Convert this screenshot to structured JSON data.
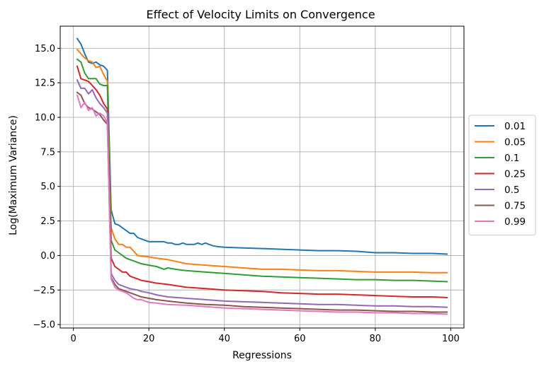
{
  "chart_data": {
    "type": "line",
    "title": "Effect of Velocity Limits on Convergence",
    "xlabel": "Regressions",
    "ylabel": "Log(Maximum Variance)",
    "xlim": [
      -3.5,
      103.5
    ],
    "ylim": [
      -5.25,
      16.6
    ],
    "xticks": [
      0,
      20,
      40,
      60,
      80,
      100
    ],
    "yticks": [
      -5.0,
      -2.5,
      0.0,
      2.5,
      5.0,
      7.5,
      10.0,
      12.5,
      15.0
    ],
    "ytick_labels": [
      "−5.0",
      "−2.5",
      "0.0",
      "2.5",
      "5.0",
      "7.5",
      "10.0",
      "12.5",
      "15.0"
    ],
    "grid": true,
    "legend_position": "outside-right",
    "series": [
      {
        "name": "0.01",
        "color": "#1f77b4",
        "x": [
          1,
          2,
          3,
          4,
          5,
          6,
          7,
          8,
          9,
          10,
          11,
          12,
          13,
          14,
          15,
          16,
          17,
          18,
          19,
          20,
          22,
          24,
          25,
          26,
          27,
          28,
          29,
          30,
          31,
          32,
          33,
          34,
          35,
          36,
          37,
          38,
          40,
          45,
          50,
          55,
          60,
          65,
          70,
          75,
          80,
          85,
          90,
          95,
          99
        ],
        "y": [
          15.7,
          15.3,
          14.6,
          14.0,
          13.9,
          14.0,
          13.8,
          13.7,
          13.4,
          3.3,
          2.3,
          2.2,
          2.0,
          1.8,
          1.6,
          1.6,
          1.3,
          1.2,
          1.1,
          1.0,
          1.0,
          1.0,
          0.9,
          0.9,
          0.8,
          0.8,
          0.9,
          0.8,
          0.8,
          0.8,
          0.9,
          0.8,
          0.9,
          0.8,
          0.7,
          0.65,
          0.6,
          0.55,
          0.5,
          0.45,
          0.4,
          0.35,
          0.35,
          0.3,
          0.2,
          0.2,
          0.15,
          0.15,
          0.1
        ]
      },
      {
        "name": "0.05",
        "color": "#ff7f0e",
        "x": [
          1,
          2,
          3,
          4,
          5,
          6,
          7,
          8,
          9,
          10,
          11,
          12,
          13,
          14,
          15,
          16,
          17,
          18,
          20,
          22,
          25,
          30,
          35,
          40,
          45,
          50,
          55,
          60,
          65,
          70,
          75,
          80,
          85,
          90,
          95,
          99
        ],
        "y": [
          14.9,
          14.6,
          14.3,
          14.1,
          14.0,
          13.6,
          13.7,
          13.1,
          12.6,
          2.0,
          1.2,
          0.8,
          0.8,
          0.6,
          0.6,
          0.3,
          0.0,
          -0.05,
          -0.1,
          -0.2,
          -0.3,
          -0.6,
          -0.7,
          -0.8,
          -0.9,
          -1.0,
          -1.0,
          -1.05,
          -1.1,
          -1.1,
          -1.15,
          -1.2,
          -1.2,
          -1.2,
          -1.25,
          -1.25
        ]
      },
      {
        "name": "0.1",
        "color": "#2ca02c",
        "x": [
          1,
          2,
          3,
          4,
          5,
          6,
          7,
          8,
          9,
          10,
          11,
          12,
          13,
          14,
          15,
          16,
          17,
          18,
          20,
          22,
          24,
          25,
          27,
          30,
          35,
          40,
          45,
          50,
          55,
          60,
          65,
          70,
          75,
          80,
          85,
          90,
          95,
          99
        ],
        "y": [
          14.2,
          14.0,
          13.2,
          12.8,
          12.8,
          12.8,
          12.4,
          12.3,
          12.3,
          1.1,
          0.4,
          0.2,
          0.0,
          -0.2,
          -0.3,
          -0.4,
          -0.5,
          -0.6,
          -0.7,
          -0.8,
          -1.0,
          -0.9,
          -1.0,
          -1.1,
          -1.2,
          -1.3,
          -1.4,
          -1.5,
          -1.55,
          -1.6,
          -1.65,
          -1.7,
          -1.75,
          -1.75,
          -1.8,
          -1.8,
          -1.85,
          -1.9
        ]
      },
      {
        "name": "0.25",
        "color": "#d62728",
        "x": [
          1,
          2,
          3,
          4,
          5,
          6,
          7,
          8,
          9,
          10,
          11,
          12,
          13,
          14,
          15,
          16,
          17,
          18,
          20,
          22,
          25,
          30,
          35,
          40,
          45,
          50,
          55,
          60,
          65,
          70,
          75,
          80,
          85,
          90,
          95,
          99
        ],
        "y": [
          13.7,
          12.8,
          12.7,
          12.6,
          12.3,
          12.0,
          11.6,
          11.0,
          10.6,
          -0.2,
          -0.8,
          -1.0,
          -1.2,
          -1.2,
          -1.5,
          -1.6,
          -1.7,
          -1.8,
          -1.9,
          -2.0,
          -2.1,
          -2.3,
          -2.4,
          -2.5,
          -2.55,
          -2.6,
          -2.7,
          -2.75,
          -2.8,
          -2.8,
          -2.85,
          -2.9,
          -2.95,
          -3.0,
          -3.0,
          -3.05
        ]
      },
      {
        "name": "0.5",
        "color": "#9467bd",
        "x": [
          1,
          2,
          3,
          4,
          5,
          6,
          7,
          8,
          9,
          10,
          11,
          12,
          13,
          14,
          15,
          16,
          17,
          18,
          20,
          22,
          25,
          30,
          35,
          40,
          45,
          50,
          55,
          60,
          65,
          70,
          75,
          80,
          85,
          90,
          95,
          99
        ],
        "y": [
          12.7,
          12.1,
          12.1,
          11.7,
          12.0,
          11.4,
          11.0,
          10.7,
          10.3,
          -1.3,
          -1.8,
          -2.1,
          -2.2,
          -2.3,
          -2.4,
          -2.45,
          -2.5,
          -2.6,
          -2.7,
          -2.85,
          -3.0,
          -3.1,
          -3.2,
          -3.3,
          -3.35,
          -3.4,
          -3.45,
          -3.5,
          -3.55,
          -3.55,
          -3.6,
          -3.65,
          -3.65,
          -3.7,
          -3.7,
          -3.75
        ]
      },
      {
        "name": "0.75",
        "color": "#8c564b",
        "x": [
          1,
          2,
          3,
          4,
          5,
          6,
          7,
          8,
          9,
          10,
          11,
          12,
          13,
          14,
          15,
          16,
          17,
          18,
          20,
          22,
          25,
          30,
          35,
          40,
          45,
          50,
          55,
          60,
          65,
          70,
          75,
          80,
          85,
          90,
          95,
          99
        ],
        "y": [
          11.8,
          11.6,
          11.0,
          10.7,
          10.6,
          10.4,
          10.2,
          9.8,
          9.5,
          -1.6,
          -2.1,
          -2.4,
          -2.5,
          -2.6,
          -2.7,
          -2.8,
          -2.9,
          -3.0,
          -3.1,
          -3.2,
          -3.3,
          -3.45,
          -3.55,
          -3.6,
          -3.7,
          -3.75,
          -3.8,
          -3.85,
          -3.9,
          -3.95,
          -3.95,
          -4.0,
          -4.05,
          -4.05,
          -4.1,
          -4.1
        ]
      },
      {
        "name": "0.99",
        "color": "#e377c2",
        "x": [
          1,
          2,
          3,
          4,
          5,
          6,
          7,
          8,
          9,
          10,
          11,
          12,
          13,
          14,
          15,
          16,
          17,
          18,
          19,
          20,
          22,
          25,
          30,
          35,
          40,
          45,
          50,
          55,
          60,
          65,
          70,
          75,
          80,
          85,
          90,
          95,
          99
        ],
        "y": [
          11.6,
          10.7,
          11.1,
          10.5,
          10.7,
          10.1,
          10.3,
          10.1,
          9.6,
          -1.7,
          -2.3,
          -2.5,
          -2.6,
          -2.7,
          -2.9,
          -3.1,
          -3.2,
          -3.2,
          -3.3,
          -3.4,
          -3.45,
          -3.55,
          -3.6,
          -3.7,
          -3.8,
          -3.85,
          -3.9,
          -3.95,
          -4.0,
          -4.05,
          -4.1,
          -4.1,
          -4.15,
          -4.15,
          -4.2,
          -4.2,
          -4.25
        ]
      }
    ]
  }
}
